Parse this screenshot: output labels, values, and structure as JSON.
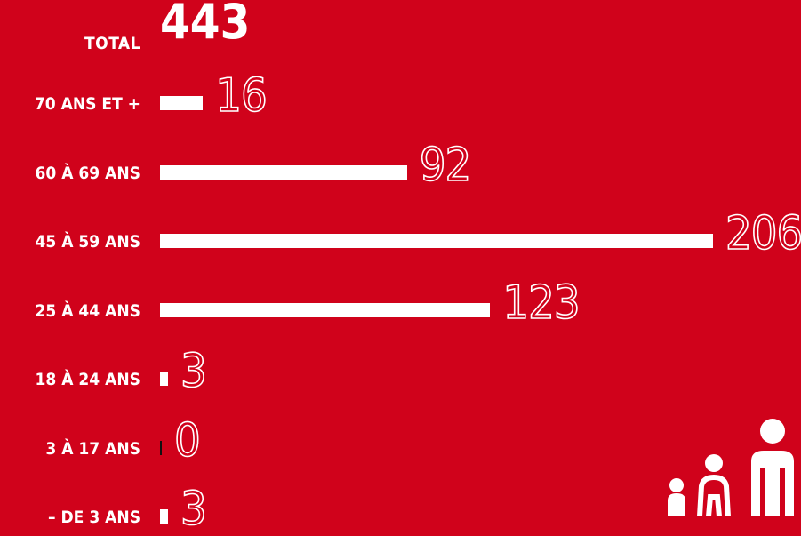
{
  "total": {
    "label": "TOTAL",
    "value": "443"
  },
  "chart_data": {
    "type": "bar",
    "orientation": "horizontal",
    "categories": [
      "70 ANS ET +",
      "60 À 69 ANS",
      "45 À 59 ANS",
      "25 À 44 ANS",
      "18 À 24 ANS",
      "3 À 17 ANS",
      "– DE 3 ANS"
    ],
    "values": [
      16,
      92,
      206,
      123,
      3,
      0,
      3
    ],
    "title": "",
    "xlabel": "",
    "ylabel": "",
    "grid": false
  },
  "colors": {
    "background": "#d0021b",
    "bar": "#ffffff",
    "text": "#ffffff"
  },
  "decoration": {
    "icon": "family-icon"
  }
}
